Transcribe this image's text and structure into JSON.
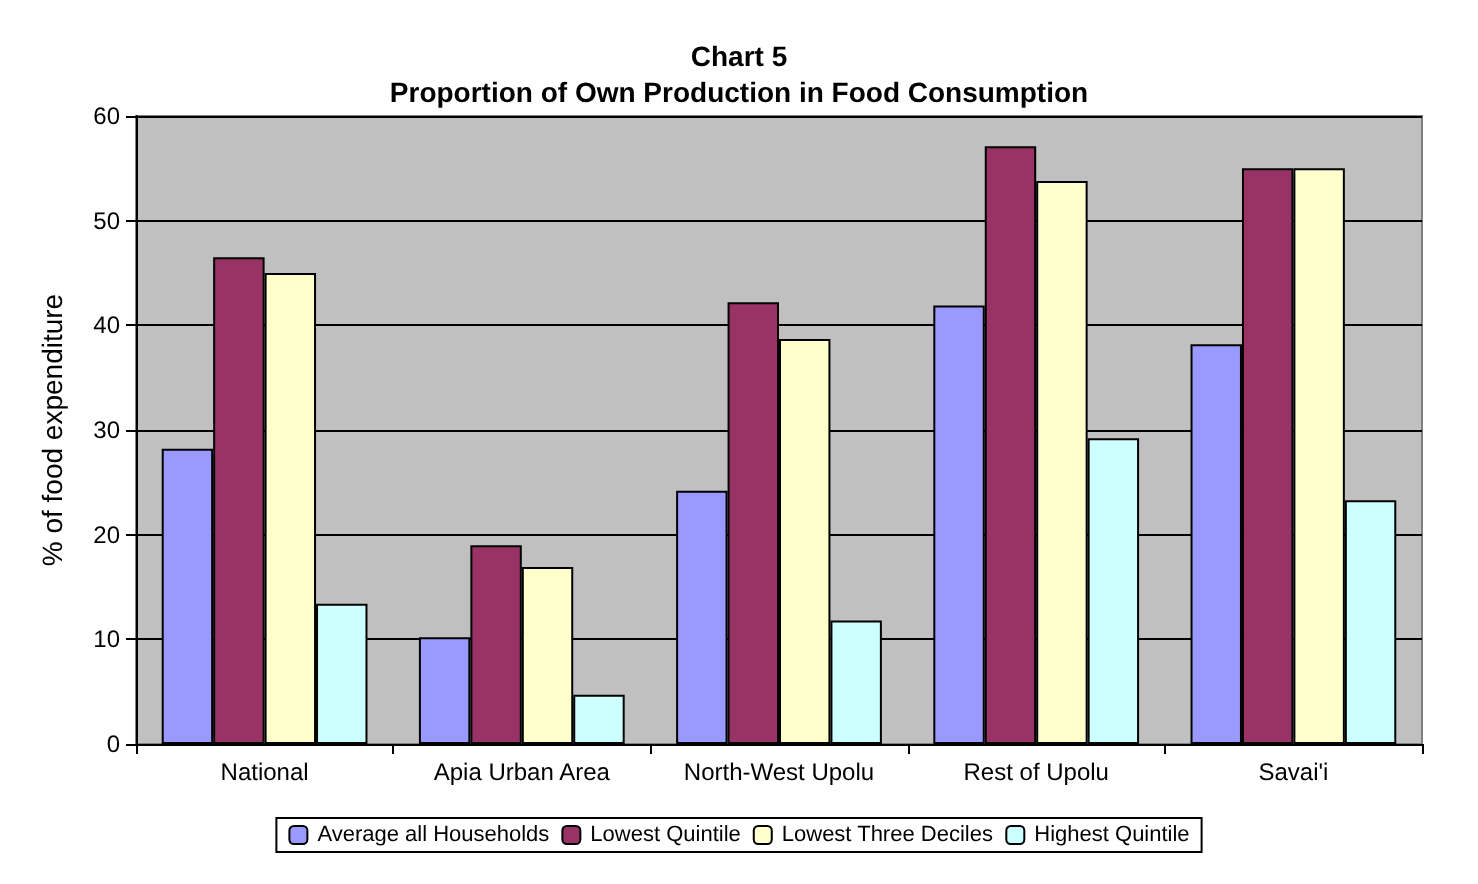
{
  "chart_data": {
    "type": "bar",
    "title": "Chart 5\nProportion of Own Production in Food Consumption",
    "ylabel": "% of food expenditure",
    "categories": [
      "National",
      "Apia Urban Area",
      "North-West Upolu",
      "Rest of Upolu",
      "Savai'i"
    ],
    "series": [
      {
        "name": "Average all Households",
        "color": "#9999ff",
        "values": [
          28.2,
          10.2,
          24.2,
          41.9,
          38.2
        ]
      },
      {
        "name": "Lowest Quintile",
        "color": "#993366",
        "values": [
          46.5,
          19,
          42.2,
          57.1,
          55
        ]
      },
      {
        "name": "Lowest Three Deciles",
        "color": "#ffffcc",
        "values": [
          45,
          16.9,
          38.7,
          53.8,
          55
        ]
      },
      {
        "name": "Highest Quintile",
        "color": "#ccffff",
        "values": [
          13.4,
          4.7,
          11.8,
          29.2,
          23.3
        ]
      }
    ],
    "ylim": [
      0,
      60
    ],
    "yticks": [
      0,
      10,
      20,
      30,
      40,
      50,
      60
    ],
    "grid": "y",
    "legend": "bottom"
  }
}
